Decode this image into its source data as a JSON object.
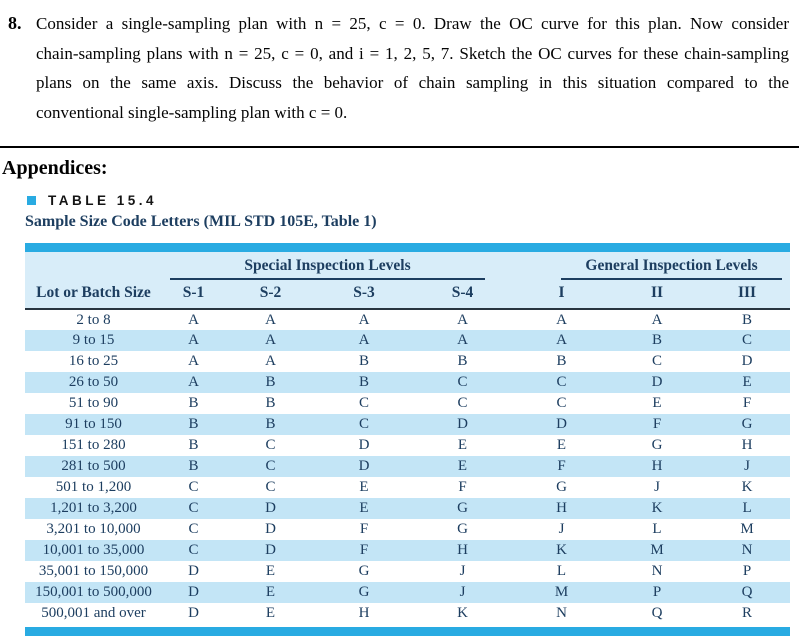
{
  "problem": {
    "number": "8.",
    "lines": [
      "Consider a single-sampling plan with n = 25, c = 0. Draw the OC curve for this plan. Now consider",
      "chain-sampling plans with n = 25, c = 0, and i = 1, 2, 5, 7. Sketch the OC curves for these chain-sampling",
      "plans on the same axis. Discuss the behavior of chain sampling in this situation compared to the",
      "conventional single-sampling plan with c = 0."
    ]
  },
  "appendices_heading": "Appendices:",
  "table": {
    "label": "TABLE 15.4",
    "caption": "Sample Size Code Letters (MIL STD 105E, Table 1)",
    "group_headers": [
      "Special Inspection Levels",
      "General Inspection Levels"
    ],
    "columns": [
      "Lot or Batch Size",
      "S-1",
      "S-2",
      "S-3",
      "S-4",
      "I",
      "II",
      "III"
    ],
    "rows": [
      [
        "2 to 8",
        "A",
        "A",
        "A",
        "A",
        "A",
        "A",
        "B"
      ],
      [
        "9 to 15",
        "A",
        "A",
        "A",
        "A",
        "A",
        "B",
        "C"
      ],
      [
        "16 to 25",
        "A",
        "A",
        "B",
        "B",
        "B",
        "C",
        "D"
      ],
      [
        "26 to 50",
        "A",
        "B",
        "B",
        "C",
        "C",
        "D",
        "E"
      ],
      [
        "51 to 90",
        "B",
        "B",
        "C",
        "C",
        "C",
        "E",
        "F"
      ],
      [
        "91 to 150",
        "B",
        "B",
        "C",
        "D",
        "D",
        "F",
        "G"
      ],
      [
        "151 to 280",
        "B",
        "C",
        "D",
        "E",
        "E",
        "G",
        "H"
      ],
      [
        "281 to 500",
        "B",
        "C",
        "D",
        "E",
        "F",
        "H",
        "J"
      ],
      [
        "501 to 1,200",
        "C",
        "C",
        "E",
        "F",
        "G",
        "J",
        "K"
      ],
      [
        "1,201 to 3,200",
        "C",
        "D",
        "E",
        "G",
        "H",
        "K",
        "L"
      ],
      [
        "3,201 to 10,000",
        "C",
        "D",
        "F",
        "G",
        "J",
        "L",
        "M"
      ],
      [
        "10,001 to 35,000",
        "C",
        "D",
        "F",
        "H",
        "K",
        "M",
        "N"
      ],
      [
        "35,001 to 150,000",
        "D",
        "E",
        "G",
        "J",
        "L",
        "N",
        "P"
      ],
      [
        "150,001 to 500,000",
        "D",
        "E",
        "G",
        "J",
        "M",
        "P",
        "Q"
      ],
      [
        "500,001 and over",
        "D",
        "E",
        "H",
        "K",
        "N",
        "Q",
        "R"
      ]
    ]
  },
  "colors": {
    "accent_cyan": "#29abe2",
    "table_header_bg": "#d8edf9",
    "row_stripe": "#c3e5f6",
    "navy_text": "#1d3e60"
  }
}
